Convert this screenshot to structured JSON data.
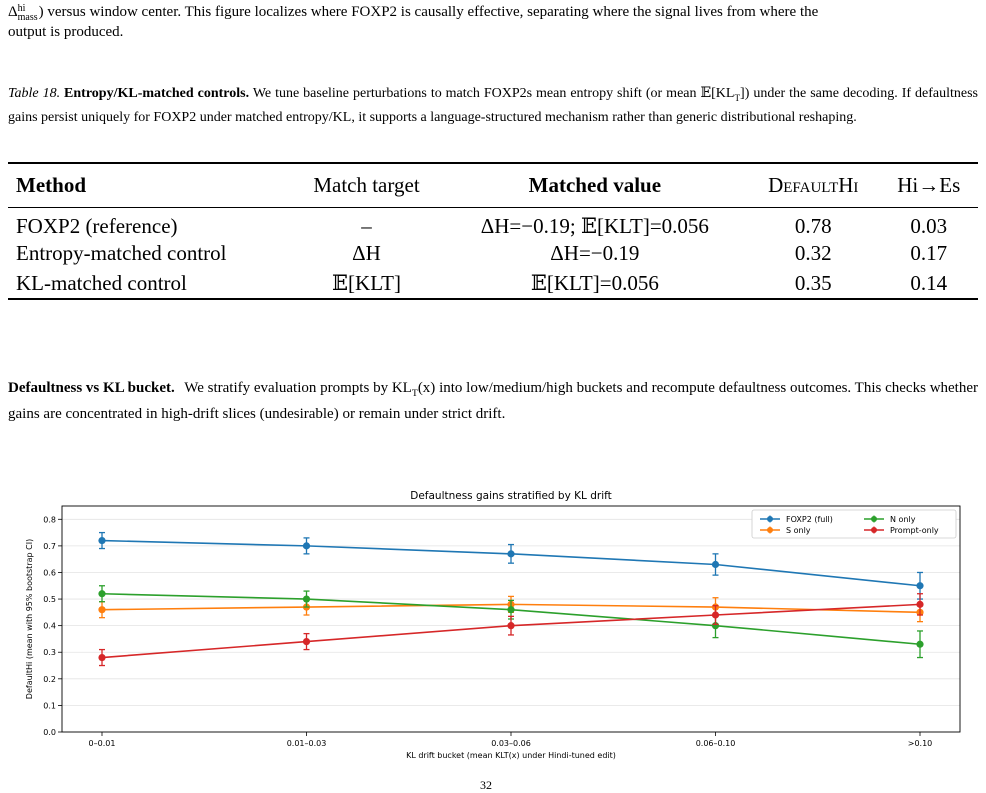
{
  "top_text": {
    "line1_sym": "Δ",
    "line1_sup": "hi",
    "line1_sub": "mass",
    "line1_rest": ") versus window center. This figure localizes where FOXP2 is causally effective, separating where the signal lives from where the",
    "line2": "output is produced."
  },
  "caption": {
    "label": "Table 18.",
    "title": "Entropy/KL-matched controls.",
    "part1": " We tune baseline perturbations to match FOXP2s mean entropy shift (or mean ",
    "math1": "𝔼[KL",
    "math1_sub": "T",
    "math1_close": "])",
    "part2": " under the same decoding. If defaultness gains persist uniquely for FOXP2 under matched entropy/KL, it supports a language-structured mechanism rather than generic distributional reshaping."
  },
  "table": {
    "headers": {
      "method": "Method",
      "match_target": "Match target",
      "matched_value": "Matched value",
      "defaulthi": "DefaultHi",
      "hi_es": "Hi→Es"
    },
    "rows": [
      {
        "method": "FOXP2 (reference)",
        "match_target": "–",
        "matched_value": "ΔH=−0.19;  𝔼[KLT]=0.056",
        "defaulthi": "0.78",
        "hi_es": "0.03"
      },
      {
        "method": "Entropy-matched control",
        "match_target": "ΔH",
        "matched_value": "ΔH=−0.19",
        "defaulthi": "0.32",
        "hi_es": "0.17"
      },
      {
        "method": "KL-matched control",
        "match_target": "𝔼[KLT]",
        "matched_value": "𝔼[KLT]=0.056",
        "defaulthi": "0.35",
        "hi_es": "0.14"
      }
    ]
  },
  "paragraph": {
    "heading": "Defaultness vs KL bucket.",
    "part1": "We stratify evaluation prompts by ",
    "math": "KL",
    "math_sub": "T",
    "math_arg": "(x)",
    "part2": " into low/medium/high buckets and recompute defaultness outcomes. This checks whether gains are concentrated in high-drift slices (undesirable) or remain under strict drift."
  },
  "chart_data": {
    "type": "line",
    "title": "Defaultness gains stratified by KL drift",
    "xlabel": "KL drift bucket (mean KLT(x) under Hindi-tuned edit)",
    "ylabel": "DefaultHi (mean with 95% bootstrap CI)",
    "categories": [
      "0–0.01",
      "0.01–0.03",
      "0.03–0.06",
      "0.06–0.10",
      ">0.10"
    ],
    "ylim": [
      0,
      0.85
    ],
    "yticks": [
      0.0,
      0.1,
      0.2,
      0.3,
      0.4,
      0.5,
      0.6,
      0.7,
      0.8
    ],
    "grid": "horizontal",
    "legend_position": "top-right",
    "series": [
      {
        "name": "FOXP2 (full)",
        "color": "#1f77b4",
        "values": [
          0.72,
          0.7,
          0.67,
          0.63,
          0.55
        ],
        "err": [
          0.03,
          0.03,
          0.035,
          0.04,
          0.05
        ]
      },
      {
        "name": "S only",
        "color": "#ff7f0e",
        "values": [
          0.46,
          0.47,
          0.48,
          0.47,
          0.45
        ],
        "err": [
          0.03,
          0.03,
          0.03,
          0.035,
          0.035
        ]
      },
      {
        "name": "N only",
        "color": "#2ca02c",
        "values": [
          0.52,
          0.5,
          0.46,
          0.4,
          0.33
        ],
        "err": [
          0.03,
          0.03,
          0.035,
          0.045,
          0.05
        ]
      },
      {
        "name": "Prompt-only",
        "color": "#d62728",
        "values": [
          0.28,
          0.34,
          0.4,
          0.44,
          0.48
        ],
        "err": [
          0.03,
          0.03,
          0.035,
          0.035,
          0.04
        ]
      }
    ]
  },
  "page_number": "32"
}
